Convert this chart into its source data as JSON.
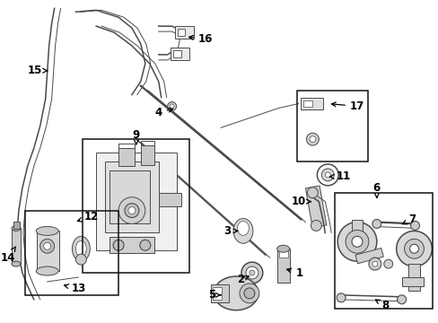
{
  "bg_color": "#ffffff",
  "lc": "#4a4a4a",
  "dc": "#111111",
  "fig_w": 4.89,
  "fig_h": 3.6,
  "dpi": 100
}
